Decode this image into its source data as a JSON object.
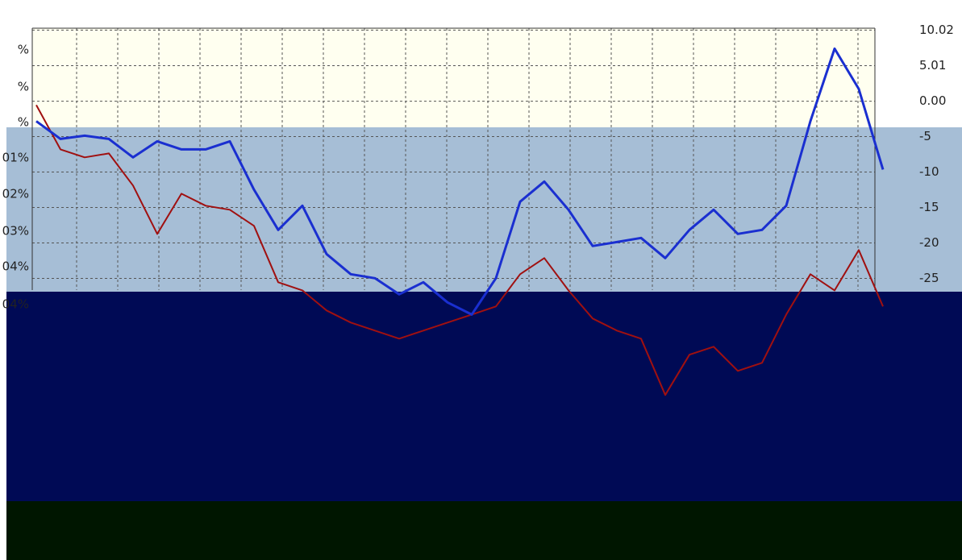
{
  "chart_data": {
    "type": "line",
    "left_axis_labels": [
      "%",
      "%",
      "%",
      "01%",
      "02%",
      "03%",
      "04%",
      "04%"
    ],
    "categories": [
      null,
      null,
      null,
      null,
      null,
      null,
      null,
      null,
      null,
      null,
      null,
      null,
      null,
      null,
      null,
      null,
      null,
      null,
      null,
      null,
      null,
      null,
      null,
      null,
      null,
      null,
      null,
      null,
      null,
      null,
      null,
      null,
      null,
      null,
      null,
      null
    ],
    "series": [
      {
        "color": "#1a2fd0",
        "values": [
          -2.82,
          -5.32,
          -4.87,
          -5.32,
          -7.93,
          -5.66,
          -6.8,
          -6.8,
          -5.66,
          -12.48,
          -18.16,
          -14.75,
          -21.57,
          -24.41,
          -24.98,
          -27.25,
          -25.55,
          -28.39,
          -30.1,
          -24.98,
          -14.18,
          -11.34,
          -15.32,
          -20.43,
          -19.87,
          -19.3,
          -22.14,
          -18.16,
          -15.32,
          -18.73,
          -18.16,
          -14.75,
          -2.82,
          7.41,
          1.72,
          -9.64
        ]
      },
      {
        "color": "#a01010",
        "values": [
          -0.55,
          -6.8,
          -7.93,
          -7.37,
          -11.91,
          -18.73,
          -13.05,
          -14.75,
          -15.32,
          -17.59,
          -25.55,
          -26.69,
          -29.53,
          -31.23,
          -32.37,
          -33.5,
          -32.37,
          -31.23,
          -30.1,
          -28.96,
          -24.41,
          -22.14,
          -26.69,
          -30.66,
          -32.37,
          -33.5,
          -41.45,
          -35.77,
          -34.64,
          -38.05,
          -36.91,
          -30.1,
          -24.41,
          -26.69,
          -21.0,
          -28.96
        ]
      }
    ],
    "ylim": [
      -57,
      12
    ],
    "yticks": [
      10.02,
      5.01,
      {
        "value": 0,
        "label": "0.00"
      },
      -5,
      -10,
      -15,
      -20,
      -25
    ],
    "grid": true
  }
}
